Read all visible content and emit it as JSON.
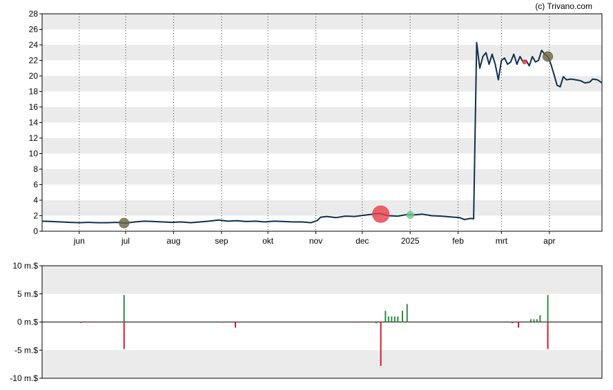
{
  "credit": "(c) Trivano.com",
  "colors": {
    "line": "#0d2f4f",
    "band": "#ebebeb",
    "up": "#2e8b3e",
    "down": "#d8182c",
    "marker_red": "#e8404a",
    "marker_green": "#74c58c",
    "marker_olive": "#6b6540"
  },
  "chart_data": [
    {
      "type": "line",
      "title": "",
      "ylim": [
        0,
        28
      ],
      "y_ticks": [
        "0",
        "2",
        "4",
        "6",
        "8",
        "10",
        "12",
        "14",
        "16",
        "18",
        "20",
        "22",
        "24",
        "26",
        "28"
      ],
      "x_ticks": [
        "jun",
        "jul",
        "aug",
        "sep",
        "okt",
        "nov",
        "dec",
        "2025",
        "feb",
        "mrt",
        "apr"
      ],
      "x_tick_dates": [
        "2024-06-01",
        "2024-07-01",
        "2024-08-01",
        "2024-09-01",
        "2024-10-01",
        "2024-11-01",
        "2024-12-01",
        "2025-01-01",
        "2025-02-01",
        "2025-03-01",
        "2025-04-01"
      ],
      "xlim": [
        "2024-05-08",
        "2025-05-05"
      ],
      "grid": "alternating horizontal bands, dotted vertical lines at month ticks",
      "series": [
        {
          "points": [
            [
              "2024-05-08",
              1.3
            ],
            [
              "2024-05-14",
              1.25
            ],
            [
              "2024-05-20",
              1.2
            ],
            [
              "2024-05-26",
              1.15
            ],
            [
              "2024-06-01",
              1.1
            ],
            [
              "2024-06-07",
              1.15
            ],
            [
              "2024-06-13",
              1.1
            ],
            [
              "2024-06-19",
              1.1
            ],
            [
              "2024-06-25",
              1.15
            ],
            [
              "2024-07-01",
              1.05
            ],
            [
              "2024-07-07",
              1.2
            ],
            [
              "2024-07-13",
              1.3
            ],
            [
              "2024-07-19",
              1.25
            ],
            [
              "2024-07-25",
              1.2
            ],
            [
              "2024-07-31",
              1.15
            ],
            [
              "2024-08-06",
              1.2
            ],
            [
              "2024-08-12",
              1.1
            ],
            [
              "2024-08-18",
              1.2
            ],
            [
              "2024-08-24",
              1.3
            ],
            [
              "2024-08-30",
              1.45
            ],
            [
              "2024-09-05",
              1.3
            ],
            [
              "2024-09-11",
              1.35
            ],
            [
              "2024-09-17",
              1.25
            ],
            [
              "2024-09-23",
              1.3
            ],
            [
              "2024-09-29",
              1.2
            ],
            [
              "2024-10-05",
              1.3
            ],
            [
              "2024-10-11",
              1.25
            ],
            [
              "2024-10-17",
              1.2
            ],
            [
              "2024-10-23",
              1.2
            ],
            [
              "2024-10-29",
              1.1
            ],
            [
              "2024-11-02",
              1.4
            ],
            [
              "2024-11-04",
              1.8
            ],
            [
              "2024-11-08",
              1.9
            ],
            [
              "2024-11-14",
              1.75
            ],
            [
              "2024-11-20",
              1.95
            ],
            [
              "2024-11-26",
              1.9
            ],
            [
              "2024-12-02",
              2.05
            ],
            [
              "2024-12-08",
              2.2
            ],
            [
              "2024-12-12",
              2.3
            ],
            [
              "2024-12-18",
              2.0
            ],
            [
              "2024-12-24",
              1.95
            ],
            [
              "2024-12-30",
              2.15
            ],
            [
              "2025-01-03",
              2.1
            ],
            [
              "2025-01-09",
              2.2
            ],
            [
              "2025-01-15",
              2.0
            ],
            [
              "2025-01-21",
              1.95
            ],
            [
              "2025-01-27",
              1.85
            ],
            [
              "2025-02-02",
              1.75
            ],
            [
              "2025-02-05",
              1.5
            ],
            [
              "2025-02-09",
              1.65
            ],
            [
              "2025-02-11",
              1.6
            ],
            [
              "2025-02-13",
              24.3
            ],
            [
              "2025-02-15",
              21.0
            ],
            [
              "2025-02-17",
              22.5
            ],
            [
              "2025-02-19",
              23.0
            ],
            [
              "2025-02-21",
              21.5
            ],
            [
              "2025-02-23",
              22.8
            ],
            [
              "2025-02-25",
              21.5
            ],
            [
              "2025-02-27",
              19.5
            ],
            [
              "2025-03-01",
              22.0
            ],
            [
              "2025-03-03",
              22.3
            ],
            [
              "2025-03-05",
              21.5
            ],
            [
              "2025-03-07",
              21.8
            ],
            [
              "2025-03-09",
              22.8
            ],
            [
              "2025-03-11",
              21.5
            ],
            [
              "2025-03-13",
              22.5
            ],
            [
              "2025-03-15",
              21.8
            ],
            [
              "2025-03-17",
              22.0
            ],
            [
              "2025-03-19",
              21.3
            ],
            [
              "2025-03-21",
              22.5
            ],
            [
              "2025-03-23",
              21.8
            ],
            [
              "2025-03-25",
              22.0
            ],
            [
              "2025-03-27",
              23.3
            ],
            [
              "2025-03-29",
              22.8
            ],
            [
              "2025-03-31",
              22.5
            ],
            [
              "2025-04-02",
              21.5
            ],
            [
              "2025-04-04",
              20.2
            ],
            [
              "2025-04-06",
              18.8
            ],
            [
              "2025-04-08",
              18.6
            ],
            [
              "2025-04-10",
              19.9
            ],
            [
              "2025-04-12",
              19.5
            ],
            [
              "2025-04-15",
              19.6
            ],
            [
              "2025-04-18",
              19.5
            ],
            [
              "2025-04-21",
              19.4
            ],
            [
              "2025-04-24",
              19.1
            ],
            [
              "2025-04-27",
              19.2
            ],
            [
              "2025-04-29",
              19.6
            ],
            [
              "2025-05-02",
              19.5
            ],
            [
              "2025-05-05",
              19.1
            ]
          ]
        }
      ],
      "markers": [
        {
          "date": "2024-06-30",
          "value": 1.05,
          "size": "medium",
          "color": "marker_olive"
        },
        {
          "date": "2024-12-13",
          "value": 2.2,
          "size": "large",
          "color": "marker_red"
        },
        {
          "date": "2025-01-01",
          "value": 2.1,
          "size": "small",
          "color": "marker_green"
        },
        {
          "date": "2025-03-16",
          "value": 21.8,
          "size": "tiny",
          "color": "marker_red"
        },
        {
          "date": "2025-03-31",
          "value": 22.5,
          "size": "medium",
          "color": "marker_olive"
        }
      ]
    },
    {
      "type": "bar",
      "title": "",
      "ylim": [
        -10,
        10
      ],
      "y_ticks": [
        "-10 m.$",
        "-5 m.$",
        "0 m.$",
        "5 m.$",
        "10 m.$"
      ],
      "xlim": [
        "2024-05-08",
        "2025-05-05"
      ],
      "grid": "alternating horizontal bands",
      "bars": [
        {
          "date": "2024-06-02",
          "value": -0.15
        },
        {
          "date": "2024-06-30",
          "value": 4.8
        },
        {
          "date": "2024-06-30",
          "value": -4.8
        },
        {
          "date": "2024-09-02",
          "value": -0.1
        },
        {
          "date": "2024-09-10",
          "value": -1.0
        },
        {
          "date": "2024-11-27",
          "value": -0.1
        },
        {
          "date": "2024-12-10",
          "value": -0.2
        },
        {
          "date": "2024-12-13",
          "value": -7.8
        },
        {
          "date": "2024-12-16",
          "value": 2.0
        },
        {
          "date": "2024-12-18",
          "value": 1.0
        },
        {
          "date": "2024-12-20",
          "value": 1.0
        },
        {
          "date": "2024-12-22",
          "value": 1.0
        },
        {
          "date": "2024-12-24",
          "value": 1.0
        },
        {
          "date": "2024-12-27",
          "value": 2.0
        },
        {
          "date": "2024-12-30",
          "value": 3.2
        },
        {
          "date": "2025-03-08",
          "value": -0.2
        },
        {
          "date": "2025-03-12",
          "value": -1.0
        },
        {
          "date": "2025-03-20",
          "value": 0.5
        },
        {
          "date": "2025-03-22",
          "value": 0.5
        },
        {
          "date": "2025-03-24",
          "value": 0.5
        },
        {
          "date": "2025-03-26",
          "value": 1.2
        },
        {
          "date": "2025-03-31",
          "value": 4.8
        },
        {
          "date": "2025-03-31",
          "value": -4.8
        }
      ]
    }
  ]
}
